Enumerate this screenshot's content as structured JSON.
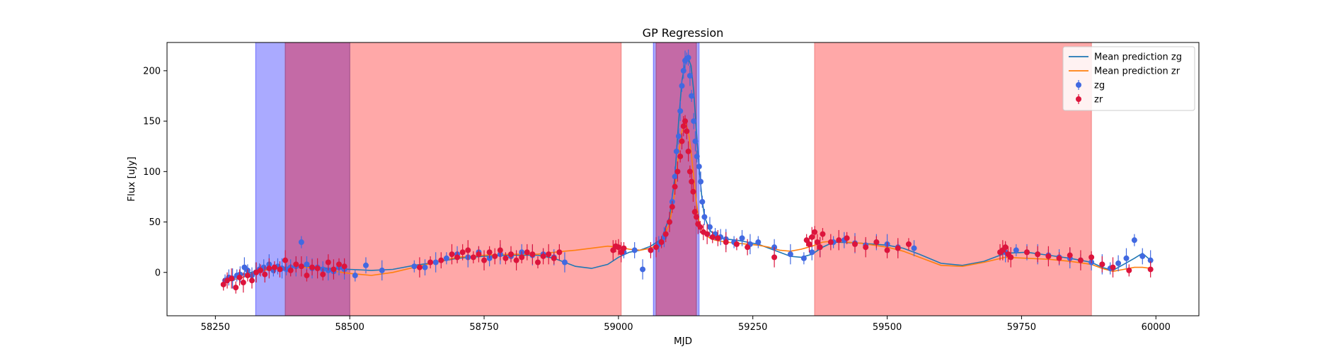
{
  "chart_data": {
    "type": "scatter",
    "title": "GP Regression",
    "xlabel": "MJD",
    "ylabel": "Flux [uJy]",
    "xlim": [
      58160,
      60080
    ],
    "ylim": [
      -43,
      228
    ],
    "xticks": [
      58250,
      58500,
      58750,
      59000,
      59250,
      59500,
      59750,
      60000
    ],
    "yticks": [
      0,
      50,
      100,
      150,
      200
    ],
    "legend_position": "top-right",
    "colors": {
      "zg_line": "#1f77b4",
      "zr_line": "#ff7f0e",
      "zg_points": "#4169e1",
      "zr_points": "#dc143c",
      "blue_span": "#aaaaff",
      "red_span": "#ffa8a8",
      "overlap_span": "#c46aa6"
    },
    "shaded_regions": [
      {
        "band": "zg",
        "x0": 58325,
        "x1": 58380
      },
      {
        "band": "zr",
        "x0": 58380,
        "x1": 58500
      },
      {
        "band": "zr",
        "x0": 58500,
        "x1": 59005
      },
      {
        "band": "zg",
        "x0": 59065,
        "x1": 59070
      },
      {
        "band": "zr",
        "x0": 59070,
        "x1": 59145
      },
      {
        "band": "zg",
        "x0": 59145,
        "x1": 59150
      },
      {
        "band": "zr",
        "x0": 59365,
        "x1": 59880
      }
    ],
    "series": [
      {
        "name": "Mean prediction zg",
        "kind": "line",
        "x": [
          58265,
          58300,
          58340,
          58380,
          58420,
          58460,
          58500,
          58540,
          58580,
          58620,
          58660,
          58700,
          58750,
          58800,
          58850,
          58880,
          58900,
          58920,
          58950,
          58980,
          59000,
          59020,
          59040,
          59060,
          59080,
          59095,
          59105,
          59112,
          59118,
          59125,
          59130,
          59135,
          59140,
          59145,
          59150,
          59155,
          59160,
          59170,
          59180,
          59200,
          59220,
          59240,
          59260,
          59280,
          59300,
          59320,
          59340,
          59360,
          59380,
          59400,
          59450,
          59500,
          59530,
          59560,
          59600,
          59640,
          59680,
          59720,
          59760,
          59800,
          59840,
          59880,
          59900,
          59920,
          59940,
          59960,
          59975,
          59990
        ],
        "y": [
          -8,
          -2,
          3,
          5,
          6,
          4,
          3,
          2,
          3,
          7,
          10,
          14,
          16,
          17,
          17,
          14,
          10,
          6,
          4,
          8,
          15,
          20,
          22,
          26,
          33,
          55,
          95,
          150,
          190,
          210,
          212,
          205,
          180,
          140,
          105,
          75,
          55,
          42,
          36,
          33,
          32,
          30,
          28,
          24,
          20,
          16,
          15,
          18,
          25,
          30,
          29,
          27,
          24,
          18,
          9,
          7,
          11,
          19,
          20,
          17,
          14,
          10,
          5,
          2,
          8,
          14,
          19,
          12
        ]
      },
      {
        "name": "Mean prediction zr",
        "kind": "line",
        "x": [
          58265,
          58300,
          58340,
          58380,
          58420,
          58460,
          58500,
          58540,
          58580,
          58620,
          58660,
          58700,
          58750,
          58800,
          58850,
          58880,
          58900,
          58920,
          58950,
          58980,
          59000,
          59020,
          59040,
          59060,
          59080,
          59095,
          59105,
          59112,
          59118,
          59125,
          59130,
          59135,
          59140,
          59145,
          59150,
          59155,
          59160,
          59170,
          59180,
          59200,
          59220,
          59240,
          59260,
          59280,
          59300,
          59320,
          59340,
          59360,
          59380,
          59400,
          59450,
          59500,
          59530,
          59560,
          59600,
          59640,
          59680,
          59720,
          59760,
          59800,
          59840,
          59880,
          59900,
          59920,
          59940,
          59960,
          59975,
          59990
        ],
        "y": [
          -10,
          -5,
          2,
          5,
          5,
          2,
          -1,
          -3,
          0,
          5,
          10,
          15,
          17,
          18,
          18,
          20,
          21,
          22,
          24,
          26,
          25,
          23,
          22,
          24,
          30,
          48,
          80,
          118,
          140,
          148,
          140,
          120,
          95,
          70,
          50,
          42,
          38,
          34,
          32,
          30,
          29,
          28,
          27,
          25,
          22,
          21,
          23,
          26,
          30,
          31,
          29,
          25,
          21,
          15,
          7,
          6,
          10,
          15,
          14,
          13,
          11,
          8,
          4,
          1,
          3,
          5,
          5,
          4
        ]
      },
      {
        "name": "zg",
        "kind": "points",
        "x": [
          58268,
          58275,
          58282,
          58290,
          58296,
          58304,
          58310,
          58318,
          58325,
          58332,
          58340,
          58350,
          58358,
          58366,
          58374,
          58382,
          58390,
          58400,
          58410,
          58420,
          58430,
          58440,
          58450,
          58460,
          58470,
          58480,
          58490,
          58510,
          58530,
          58560,
          58620,
          58640,
          58660,
          58680,
          58700,
          58720,
          58740,
          58760,
          58780,
          58800,
          58820,
          58840,
          58860,
          58880,
          58900,
          59010,
          59030,
          59045,
          59060,
          59075,
          59085,
          59095,
          59100,
          59105,
          59108,
          59112,
          59115,
          59118,
          59121,
          59124,
          59127,
          59130,
          59133,
          59136,
          59140,
          59143,
          59146,
          59150,
          59153,
          59156,
          59160,
          59170,
          59180,
          59190,
          59200,
          59215,
          59230,
          59245,
          59260,
          59290,
          59320,
          59345,
          59360,
          59375,
          59400,
          59420,
          59440,
          59460,
          59480,
          59500,
          59520,
          59550,
          59720,
          59740,
          59760,
          59780,
          59800,
          59820,
          59840,
          59860,
          59880,
          59900,
          59915,
          59930,
          59945,
          59960,
          59975,
          59990
        ],
        "y": [
          -8,
          -5,
          -6,
          -3,
          -2,
          5,
          2,
          -3,
          0,
          3,
          5,
          8,
          2,
          6,
          4,
          3,
          5,
          6,
          30,
          8,
          4,
          5,
          3,
          2,
          1,
          5,
          3,
          -3,
          7,
          2,
          6,
          5,
          10,
          14,
          18,
          15,
          20,
          14,
          18,
          16,
          20,
          17,
          18,
          15,
          10,
          20,
          22,
          3,
          22,
          28,
          35,
          50,
          70,
          95,
          120,
          135,
          160,
          185,
          200,
          210,
          212,
          213,
          195,
          175,
          150,
          130,
          115,
          105,
          90,
          70,
          55,
          45,
          38,
          35,
          33,
          30,
          34,
          28,
          30,
          25,
          18,
          14,
          20,
          25,
          30,
          32,
          29,
          27,
          30,
          28,
          25,
          24,
          20,
          22,
          20,
          18,
          17,
          15,
          14,
          12,
          10,
          8,
          4,
          9,
          14,
          32,
          16,
          12
        ]
      },
      {
        "name": "zr",
        "kind": "points",
        "x": [
          58265,
          58272,
          58280,
          58288,
          58295,
          58302,
          58310,
          58318,
          58326,
          58334,
          58342,
          58350,
          58360,
          58370,
          58380,
          58390,
          58400,
          58410,
          58420,
          58430,
          58440,
          58450,
          58460,
          58470,
          58480,
          58490,
          58630,
          58650,
          58670,
          58690,
          58700,
          58710,
          58720,
          58730,
          58740,
          58750,
          58760,
          58770,
          58780,
          58790,
          58800,
          58810,
          58820,
          58830,
          58840,
          58850,
          58860,
          58870,
          58880,
          58890,
          58990,
          58995,
          59000,
          59005,
          59010,
          59060,
          59070,
          59080,
          59088,
          59095,
          59100,
          59105,
          59110,
          59115,
          59118,
          59121,
          59124,
          59127,
          59130,
          59133,
          59136,
          59139,
          59142,
          59145,
          59148,
          59152,
          59158,
          59165,
          59175,
          59185,
          59200,
          59220,
          59240,
          59290,
          59350,
          59355,
          59360,
          59365,
          59370,
          59375,
          59380,
          59395,
          59410,
          59425,
          59440,
          59460,
          59480,
          59500,
          59520,
          59540,
          59710,
          59715,
          59720,
          59725,
          59730,
          59760,
          59780,
          59800,
          59820,
          59840,
          59860,
          59880,
          59900,
          59920,
          59950,
          59990
        ],
        "y": [
          -12,
          -8,
          -6,
          -15,
          -5,
          -10,
          -3,
          -8,
          0,
          2,
          -2,
          4,
          5,
          3,
          12,
          2,
          8,
          6,
          -3,
          5,
          4,
          -2,
          10,
          3,
          8,
          6,
          5,
          10,
          12,
          18,
          15,
          20,
          22,
          15,
          18,
          12,
          20,
          16,
          22,
          14,
          18,
          12,
          15,
          20,
          18,
          10,
          16,
          18,
          14,
          20,
          22,
          26,
          25,
          20,
          24,
          22,
          25,
          30,
          38,
          50,
          65,
          85,
          100,
          115,
          130,
          145,
          150,
          140,
          120,
          100,
          90,
          80,
          60,
          55,
          48,
          45,
          40,
          38,
          35,
          34,
          30,
          28,
          25,
          15,
          32,
          28,
          35,
          40,
          30,
          25,
          38,
          30,
          32,
          34,
          28,
          25,
          30,
          22,
          24,
          28,
          20,
          22,
          25,
          18,
          15,
          20,
          18,
          16,
          14,
          17,
          12,
          15,
          8,
          5,
          2,
          3
        ]
      }
    ],
    "legend": [
      "Mean prediction zg",
      "Mean prediction zr",
      "zg",
      "zr"
    ]
  }
}
